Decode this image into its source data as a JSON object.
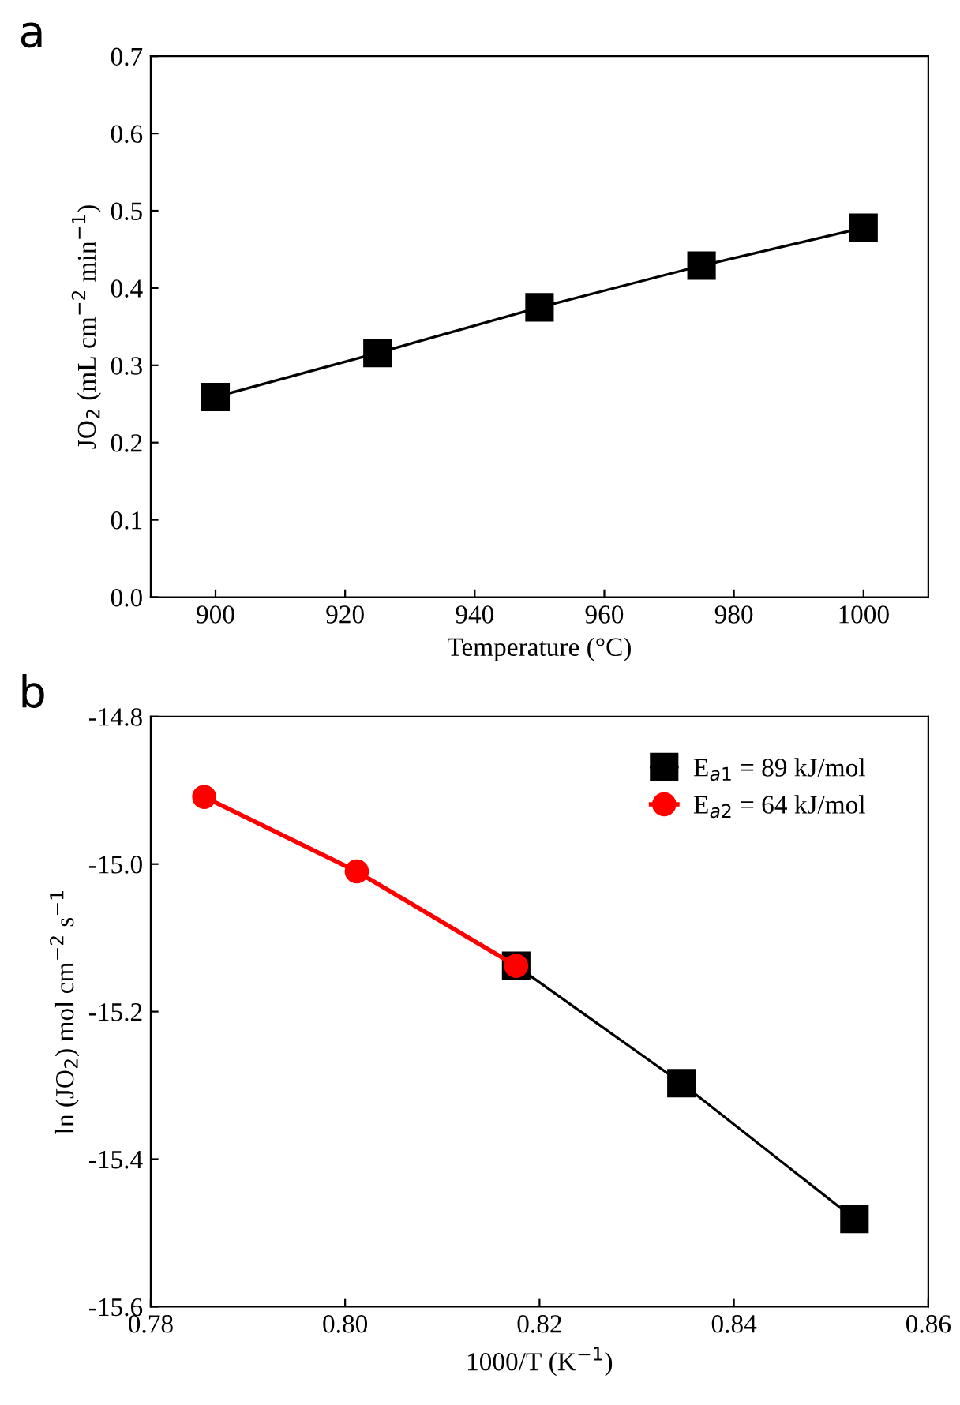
{
  "chart_data": [
    {
      "type": "line",
      "title": "a",
      "xlabel": "Temperature (°C)",
      "ylabel": "JO$_{2}$ (mL cm$^{−2}$ min$^{−1}$)",
      "x": [
        900,
        925,
        950,
        975,
        1000
      ],
      "series": [
        {
          "color": "#000000",
          "values": [
            0.259,
            0.316,
            0.375,
            0.429,
            0.478
          ],
          "marker": "square"
        }
      ],
      "xlim": [
        890,
        1010
      ],
      "xticks": [
        900,
        920,
        940,
        960,
        980,
        1000
      ],
      "ylim": [
        0,
        0.7
      ],
      "yticks": [
        {
          "value": 0,
          "label": "0.0"
        },
        0.1,
        0.2,
        0.3,
        0.4,
        0.5,
        0.6,
        0.7
      ],
      "grid": false,
      "legend": false,
      "line_style": "solid"
    },
    {
      "type": "line",
      "title": "b",
      "xlabel": "1000/T (K$^{−1}$)",
      "ylabel": "ln (JO$_{2}$) mol cm$^{−2}$ s$^{−1}$",
      "series": [
        {
          "name": "E$_{a1}$ = 89 kJ/mol",
          "color": "#000000",
          "x": [
            0.8176,
            0.8346,
            0.8524
          ],
          "values": [
            -15.138,
            -15.297,
            -15.481
          ],
          "marker": "square"
        },
        {
          "name": "E$_{a2}$ = 64 kJ/mol",
          "color": "#ff0000",
          "x": [
            0.7855,
            0.8012,
            0.8176
          ],
          "values": [
            -14.909,
            -15.01,
            -15.138
          ],
          "marker": "circle"
        }
      ],
      "xlim": [
        0.78,
        0.86
      ],
      "xticks": [
        {
          "value": 0.78,
          "label": "0.78"
        },
        {
          "value": 0.8,
          "label": "0.80"
        },
        {
          "value": 0.82,
          "label": "0.82"
        },
        {
          "value": 0.84,
          "label": "0.84"
        },
        {
          "value": 0.86,
          "label": "0.86"
        }
      ],
      "ylim": [
        -15.6,
        -14.8
      ],
      "yticks": [
        {
          "value": -15.6,
          "label": "-15.6"
        },
        {
          "value": -15.4,
          "label": "-15.4"
        },
        {
          "value": -15.2,
          "label": "-15.2"
        },
        {
          "value": -15.0,
          "label": "-15.0"
        },
        {
          "value": -14.8,
          "label": "-14.8"
        }
      ],
      "grid": false,
      "legend": "top right",
      "line_style": "solid"
    }
  ]
}
